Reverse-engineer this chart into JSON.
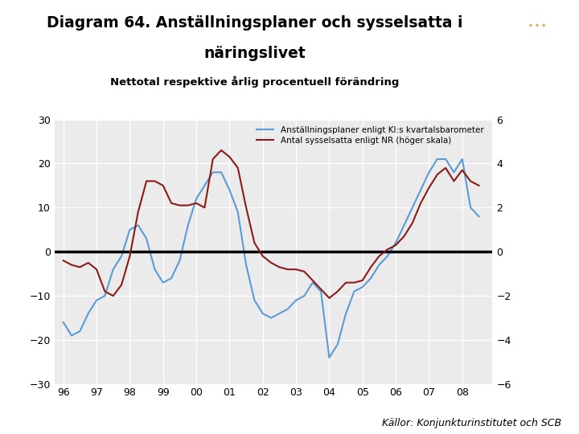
{
  "title_line1": "Diagram 64. Anställningsplaner och sysselsatta i",
  "title_line2": "näringslivet",
  "subtitle": "Nettotal respektive årlig procentuell förändring",
  "source": "Källor: Konjunkturinstitutet och SCB",
  "legend1": "Anställningsplaner enligt KI:s kvartalsbarometer",
  "legend2": "Antal sysselsatta enligt NR (höger skala)",
  "color_blue": "#5B9BD5",
  "color_red": "#8B1A1A",
  "bg_color": "#EBEBEB",
  "logo_bg": "#1B3F7A",
  "bottom_bar_color": "#1B3F7A",
  "ylim_left": [
    -30,
    30
  ],
  "ylim_right": [
    -6,
    6
  ],
  "yticks_left": [
    -30,
    -20,
    -10,
    0,
    10,
    20,
    30
  ],
  "yticks_right": [
    -6,
    -4,
    -2,
    0,
    2,
    4,
    6
  ],
  "xtick_labels": [
    "96",
    "97",
    "98",
    "99",
    "00",
    "01",
    "02",
    "03",
    "04",
    "05",
    "06",
    "07",
    "08"
  ],
  "xtick_positions": [
    1996,
    1997,
    1998,
    1999,
    2000,
    2001,
    2002,
    2003,
    2004,
    2005,
    2006,
    2007,
    2008
  ],
  "xlim": [
    1995.75,
    2008.9
  ],
  "blue_x": [
    1996.0,
    1996.25,
    1996.5,
    1996.75,
    1997.0,
    1997.25,
    1997.5,
    1997.75,
    1998.0,
    1998.25,
    1998.5,
    1998.75,
    1999.0,
    1999.25,
    1999.5,
    1999.75,
    2000.0,
    2000.25,
    2000.5,
    2000.75,
    2001.0,
    2001.25,
    2001.5,
    2001.75,
    2002.0,
    2002.25,
    2002.5,
    2002.75,
    2003.0,
    2003.25,
    2003.5,
    2003.75,
    2004.0,
    2004.25,
    2004.5,
    2004.75,
    2005.0,
    2005.25,
    2005.5,
    2005.75,
    2006.0,
    2006.25,
    2006.5,
    2006.75,
    2007.0,
    2007.25,
    2007.5,
    2007.75,
    2008.0,
    2008.25,
    2008.5
  ],
  "blue_y": [
    -16,
    -19,
    -18,
    -14,
    -11,
    -10,
    -4,
    -1,
    5,
    6,
    3,
    -4,
    -7,
    -6,
    -2,
    6,
    12,
    15,
    18,
    18,
    14,
    9,
    -3,
    -11,
    -14,
    -15,
    -14,
    -13,
    -11,
    -10,
    -7,
    -9,
    -24,
    -21,
    -14,
    -9,
    -8,
    -6,
    -3,
    -1,
    2,
    6,
    10,
    14,
    18,
    21,
    21,
    18,
    21,
    10,
    8
  ],
  "red_x": [
    1996.0,
    1996.25,
    1996.5,
    1996.75,
    1997.0,
    1997.25,
    1997.5,
    1997.75,
    1998.0,
    1998.25,
    1998.5,
    1998.75,
    1999.0,
    1999.25,
    1999.5,
    1999.75,
    2000.0,
    2000.25,
    2000.5,
    2000.75,
    2001.0,
    2001.25,
    2001.5,
    2001.75,
    2002.0,
    2002.25,
    2002.5,
    2002.75,
    2003.0,
    2003.25,
    2003.5,
    2003.75,
    2004.0,
    2004.25,
    2004.5,
    2004.75,
    2005.0,
    2005.25,
    2005.5,
    2005.75,
    2006.0,
    2006.25,
    2006.5,
    2006.75,
    2007.0,
    2007.25,
    2007.5,
    2007.75,
    2008.0,
    2008.25,
    2008.5
  ],
  "red_y": [
    -0.4,
    -0.6,
    -0.7,
    -0.5,
    -0.8,
    -1.8,
    -2.0,
    -1.5,
    -0.2,
    1.8,
    3.2,
    3.2,
    3.0,
    2.2,
    2.1,
    2.1,
    2.2,
    2.0,
    4.2,
    4.6,
    4.3,
    3.8,
    2.0,
    0.4,
    -0.2,
    -0.5,
    -0.7,
    -0.8,
    -0.8,
    -0.9,
    -1.3,
    -1.7,
    -2.1,
    -1.8,
    -1.4,
    -1.4,
    -1.3,
    -0.7,
    -0.2,
    0.1,
    0.3,
    0.7,
    1.3,
    2.2,
    2.9,
    3.5,
    3.8,
    3.2,
    3.7,
    3.2,
    3.0
  ]
}
